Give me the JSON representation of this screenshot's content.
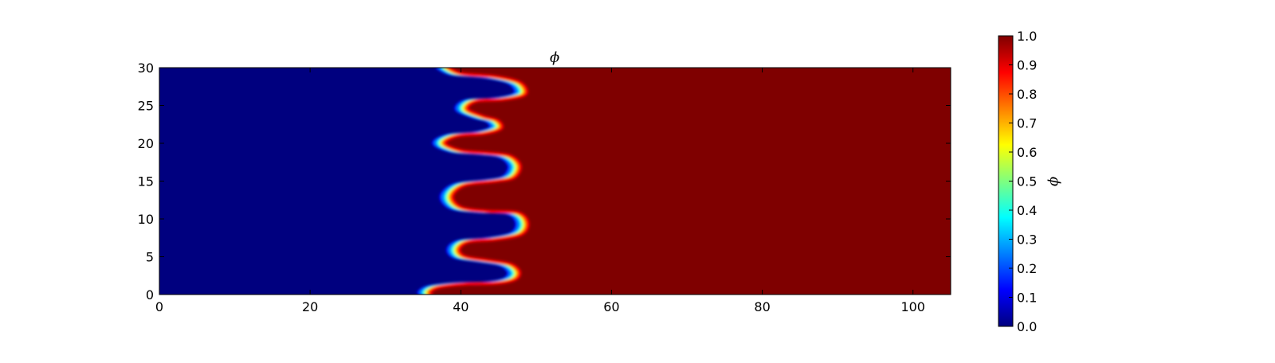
{
  "chart_data": {
    "type": "heatmap",
    "title": "ϕ",
    "xlabel": "",
    "ylabel": "",
    "xlim": [
      0,
      105
    ],
    "ylim": [
      0,
      30
    ],
    "x_ticks": [
      "0",
      "20",
      "40",
      "60",
      "80",
      "100"
    ],
    "y_ticks": [
      "0",
      "5",
      "10",
      "15",
      "20",
      "25",
      "30"
    ],
    "field": {
      "low_value": 0.0,
      "high_value": 1.0,
      "low_region": "left",
      "high_region": "right",
      "interface": [
        {
          "y": 0.0,
          "x": 35.5
        },
        {
          "y": 0.4,
          "x": 35.4
        },
        {
          "y": 1.0,
          "x": 36.6
        },
        {
          "y": 1.4,
          "x": 40.0
        },
        {
          "y": 1.5,
          "x": 44.0
        },
        {
          "y": 2.0,
          "x": 46.6
        },
        {
          "y": 3.0,
          "x": 47.2
        },
        {
          "y": 4.0,
          "x": 46.0
        },
        {
          "y": 4.5,
          "x": 43.0
        },
        {
          "y": 5.0,
          "x": 40.0
        },
        {
          "y": 6.0,
          "x": 39.2
        },
        {
          "y": 7.0,
          "x": 40.5
        },
        {
          "y": 7.3,
          "x": 44.0
        },
        {
          "y": 8.0,
          "x": 47.5
        },
        {
          "y": 9.5,
          "x": 48.3
        },
        {
          "y": 10.8,
          "x": 47.0
        },
        {
          "y": 11.0,
          "x": 43.0
        },
        {
          "y": 11.5,
          "x": 39.5
        },
        {
          "y": 13.0,
          "x": 38.3
        },
        {
          "y": 14.5,
          "x": 40.0
        },
        {
          "y": 15.0,
          "x": 44.0
        },
        {
          "y": 15.5,
          "x": 46.5
        },
        {
          "y": 17.0,
          "x": 47.3
        },
        {
          "y": 18.3,
          "x": 46.0
        },
        {
          "y": 18.7,
          "x": 43.0
        },
        {
          "y": 19.0,
          "x": 39.5
        },
        {
          "y": 20.0,
          "x": 37.3
        },
        {
          "y": 21.0,
          "x": 39.0
        },
        {
          "y": 21.3,
          "x": 42.5
        },
        {
          "y": 22.0,
          "x": 44.8
        },
        {
          "y": 23.0,
          "x": 44.3
        },
        {
          "y": 23.5,
          "x": 42.5
        },
        {
          "y": 24.5,
          "x": 40.3
        },
        {
          "y": 25.6,
          "x": 41.5
        },
        {
          "y": 25.8,
          "x": 45.0
        },
        {
          "y": 26.5,
          "x": 48.0
        },
        {
          "y": 28.0,
          "x": 47.3
        },
        {
          "y": 28.8,
          "x": 44.0
        },
        {
          "y": 29.2,
          "x": 39.5
        },
        {
          "y": 30.0,
          "x": 37.8
        }
      ]
    },
    "colorbar": {
      "label": "ϕ",
      "range": [
        0.0,
        1.0
      ],
      "ticks": [
        "0.0",
        "0.1",
        "0.2",
        "0.3",
        "0.4",
        "0.5",
        "0.6",
        "0.7",
        "0.8",
        "0.9",
        "1.0"
      ],
      "colormap": [
        "#00007f",
        "#0000ff",
        "#007fff",
        "#00ffff",
        "#7fff7f",
        "#ffff00",
        "#ff7f00",
        "#ff0000",
        "#7f0000"
      ],
      "colormap_name": "jet"
    }
  }
}
